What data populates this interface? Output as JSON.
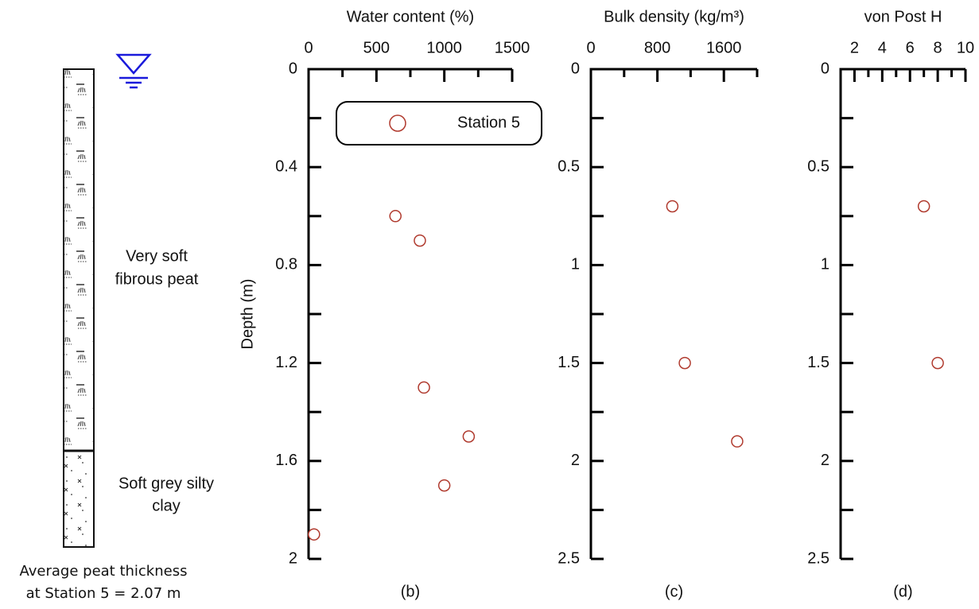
{
  "soil_log": {
    "peat_label": [
      "Very soft",
      "fibrous peat"
    ],
    "clay_label": [
      "Soft grey silty",
      "clay"
    ],
    "caption": [
      "Average peat thickness",
      "at Station 5 = 2.07 m"
    ]
  },
  "chart_data": [
    {
      "type": "scatter",
      "xlabel": "Water content (%)",
      "ylabel": "Depth (m)",
      "panel_label": "(b)",
      "xlim": [
        0,
        1500
      ],
      "xticks": [
        0,
        500,
        1000,
        1500
      ],
      "xminor": [
        250,
        750,
        1250
      ],
      "ylim": [
        2,
        0
      ],
      "yticks": [
        0,
        0.4,
        0.8,
        1.2,
        1.6,
        2
      ],
      "yminor": [
        0.2,
        0.6,
        1.0,
        1.4,
        1.8
      ],
      "legend": "upper right",
      "series": [
        {
          "name": "Station 5",
          "color": "#b03a2e",
          "x": [
            640,
            820,
            850,
            1180,
            1000,
            40
          ],
          "values": [
            0.6,
            0.7,
            1.3,
            1.5,
            1.7,
            1.9
          ]
        }
      ]
    },
    {
      "type": "scatter",
      "xlabel": "Bulk density (kg/m³)",
      "panel_label": "(c)",
      "xlim": [
        0,
        2000
      ],
      "xticks": [
        0,
        800,
        1600
      ],
      "xminor": [
        400,
        1200,
        2000
      ],
      "ylim": [
        2.5,
        0
      ],
      "yticks": [
        0,
        0.5,
        1,
        1.5,
        2,
        2.5
      ],
      "yminor": [
        0.25,
        0.75,
        1.25,
        1.75,
        2.25
      ],
      "series": [
        {
          "color": "#b03a2e",
          "x": [
            980,
            1130,
            1760
          ],
          "values": [
            0.7,
            1.5,
            1.9
          ]
        }
      ]
    },
    {
      "type": "scatter",
      "xlabel": "von Post H",
      "panel_label": "(d)",
      "xlim": [
        1,
        10
      ],
      "xticks": [
        2,
        4,
        6,
        8,
        10
      ],
      "xminor": [
        3,
        5,
        7,
        9
      ],
      "ylim": [
        2.5,
        0
      ],
      "yticks": [
        0,
        0.5,
        1,
        1.5,
        2,
        2.5
      ],
      "yminor": [
        0.25,
        0.75,
        1.25,
        1.75,
        2.25
      ],
      "series": [
        {
          "color": "#b03a2e",
          "x": [
            7,
            8
          ],
          "values": [
            0.7,
            1.5
          ]
        }
      ]
    }
  ]
}
